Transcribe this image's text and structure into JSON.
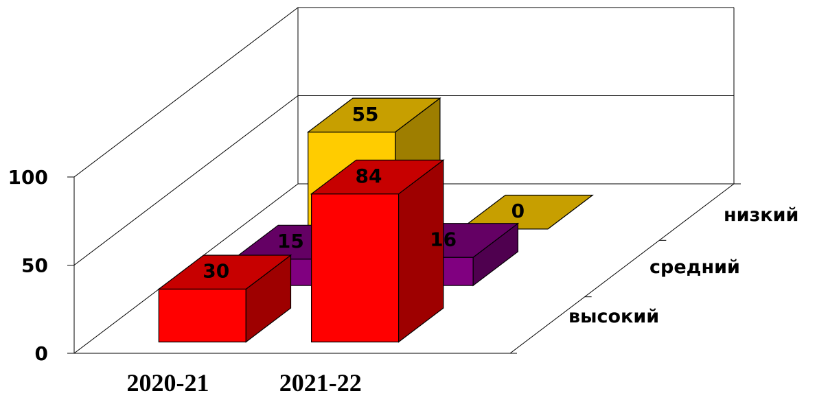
{
  "chart_data": {
    "type": "bar",
    "subtype": "3d-column",
    "categories": [
      "2020-21",
      "2021-22"
    ],
    "series": [
      {
        "name": "низкий",
        "values": [
          55,
          0
        ],
        "color": "#FFCC00"
      },
      {
        "name": "средний",
        "values": [
          15,
          16
        ],
        "color": "#800080"
      },
      {
        "name": "высокий",
        "values": [
          30,
          84
        ],
        "color": "#FF0000"
      }
    ],
    "yticks": [
      "0",
      "50",
      "100"
    ],
    "ylim": [
      0,
      100
    ],
    "grid": true,
    "title": "",
    "xlabel": "",
    "ylabel": ""
  }
}
